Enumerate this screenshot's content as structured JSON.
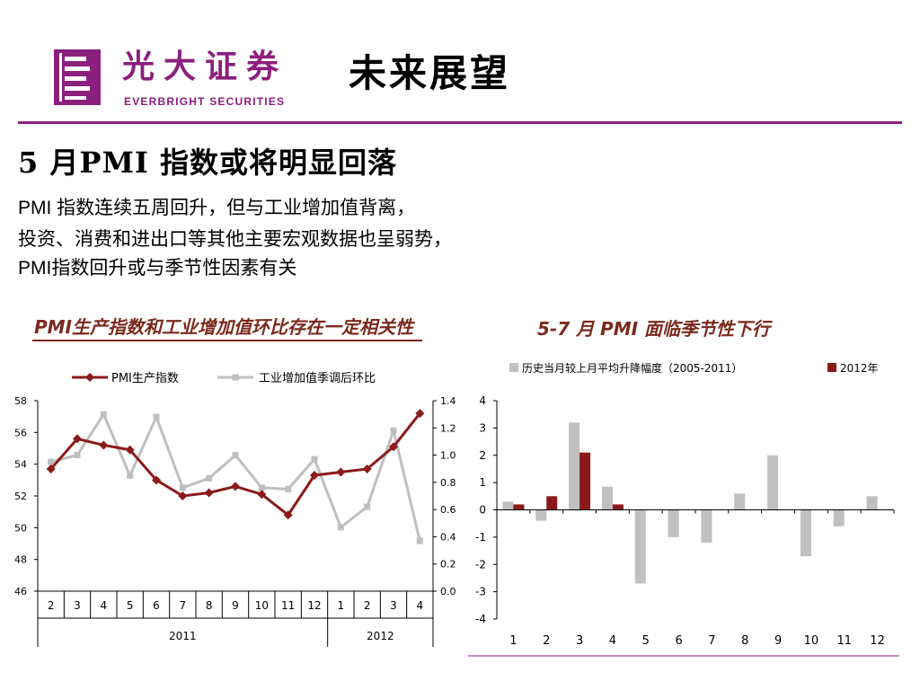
{
  "header": {
    "logo_cn": "光大证券",
    "logo_en": "EVERBRIGHT SECURITIES",
    "title": "未来展望",
    "brand_color": "#8b1f7d"
  },
  "slide": {
    "title": "5 月PMI 指数或将明显回落",
    "bullets": [
      "PMI 指数连续五周回升，但与工业增加值背离，",
      "投资、消费和进出口等其他主要宏观数据也呈弱势，",
      "PMI指数回升或与季节性因素有关"
    ]
  },
  "chart_data": [
    {
      "type": "line",
      "title": "PMI生产指数和工业增加值环比存在一定相关性",
      "x": [
        "2",
        "3",
        "4",
        "5",
        "6",
        "7",
        "8",
        "9",
        "10",
        "11",
        "12",
        "1",
        "2",
        "3",
        "4"
      ],
      "x_groups": [
        {
          "label": "2011",
          "span": 11
        },
        {
          "label": "2012",
          "span": 4
        }
      ],
      "series": [
        {
          "name": "PMI生产指数",
          "axis": "left",
          "color": "#8b1a1a",
          "values": [
            53.7,
            55.6,
            55.2,
            54.9,
            53.0,
            52.0,
            52.2,
            52.6,
            52.1,
            50.8,
            53.3,
            53.5,
            53.7,
            55.1,
            57.2
          ]
        },
        {
          "name": "工业增加值季调后环比",
          "axis": "right",
          "color": "#bfbfbf",
          "values": [
            0.95,
            1.0,
            1.3,
            0.85,
            1.28,
            0.76,
            0.83,
            1.0,
            0.76,
            0.75,
            0.97,
            0.47,
            0.62,
            1.18,
            0.37
          ]
        }
      ],
      "y_left": {
        "range": [
          46,
          58
        ],
        "ticks": [
          "58",
          "56",
          "54",
          "52",
          "50",
          "48",
          "46"
        ]
      },
      "y_right": {
        "range": [
          0.0,
          1.4
        ],
        "ticks": [
          "1.4",
          "1.2",
          "1.0",
          "0.8",
          "0.6",
          "0.4",
          "0.2",
          "0.0"
        ]
      },
      "legend": "top"
    },
    {
      "type": "bar",
      "title": "5-7 月 PMI 面临季节性下行",
      "categories": [
        "1",
        "2",
        "3",
        "4",
        "5",
        "6",
        "7",
        "8",
        "9",
        "10",
        "11",
        "12"
      ],
      "series": [
        {
          "name": "历史当月较上月平均升降幅度（2005-2011）",
          "color": "#c0c0c0",
          "values": [
            0.3,
            -0.4,
            3.2,
            0.85,
            -2.7,
            -1.0,
            -1.2,
            0.6,
            2.0,
            -1.7,
            -0.6,
            0.5
          ]
        },
        {
          "name": "2012年",
          "color": "#8b1a1a",
          "values": [
            0.2,
            0.5,
            2.1,
            0.2,
            null,
            null,
            null,
            null,
            null,
            null,
            null,
            null
          ]
        }
      ],
      "y": {
        "range": [
          -4,
          4
        ],
        "ticks": [
          "4",
          "3",
          "2",
          "1",
          "0",
          "-1",
          "-2",
          "-3",
          "-4"
        ]
      },
      "legend": "top"
    }
  ]
}
